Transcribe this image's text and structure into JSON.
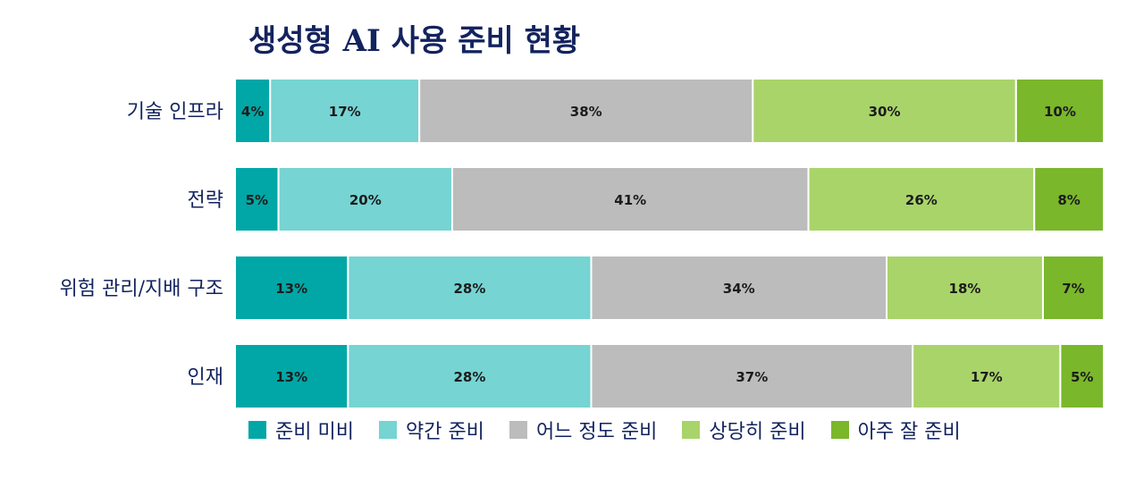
{
  "chart_data": {
    "type": "bar",
    "orientation": "horizontal",
    "stacked": true,
    "title": "생성형 AI 사용 준비 현황",
    "categories": [
      "기술 인프라",
      "전략",
      "위험 관리/지배 구조",
      "인재"
    ],
    "series": [
      {
        "name": "준비 미비",
        "color": "#00a7a6",
        "values": [
          4,
          5,
          13,
          13
        ],
        "labels": [
          "4%",
          "5%",
          "13%",
          "13%"
        ]
      },
      {
        "name": "약간 준비",
        "color": "#76d4d3",
        "values": [
          17,
          20,
          28,
          28
        ],
        "labels": [
          "17%",
          "20%",
          "28%",
          "28%"
        ]
      },
      {
        "name": "어느 정도 준비",
        "color": "#bcbcbc",
        "values": [
          38,
          41,
          34,
          37
        ],
        "labels": [
          "38%",
          "41%",
          "34%",
          "37%"
        ]
      },
      {
        "name": "상당히 준비",
        "color": "#a9d46a",
        "values": [
          30,
          26,
          18,
          17
        ],
        "labels": [
          "30%",
          "26%",
          "18%",
          "17%"
        ]
      },
      {
        "name": "아주 잘 준비",
        "color": "#7ab72b",
        "values": [
          10,
          8,
          7,
          5
        ],
        "labels": [
          "10%",
          "8%",
          "7%",
          "5%"
        ]
      }
    ],
    "legend_position": "bottom",
    "grid": false
  }
}
